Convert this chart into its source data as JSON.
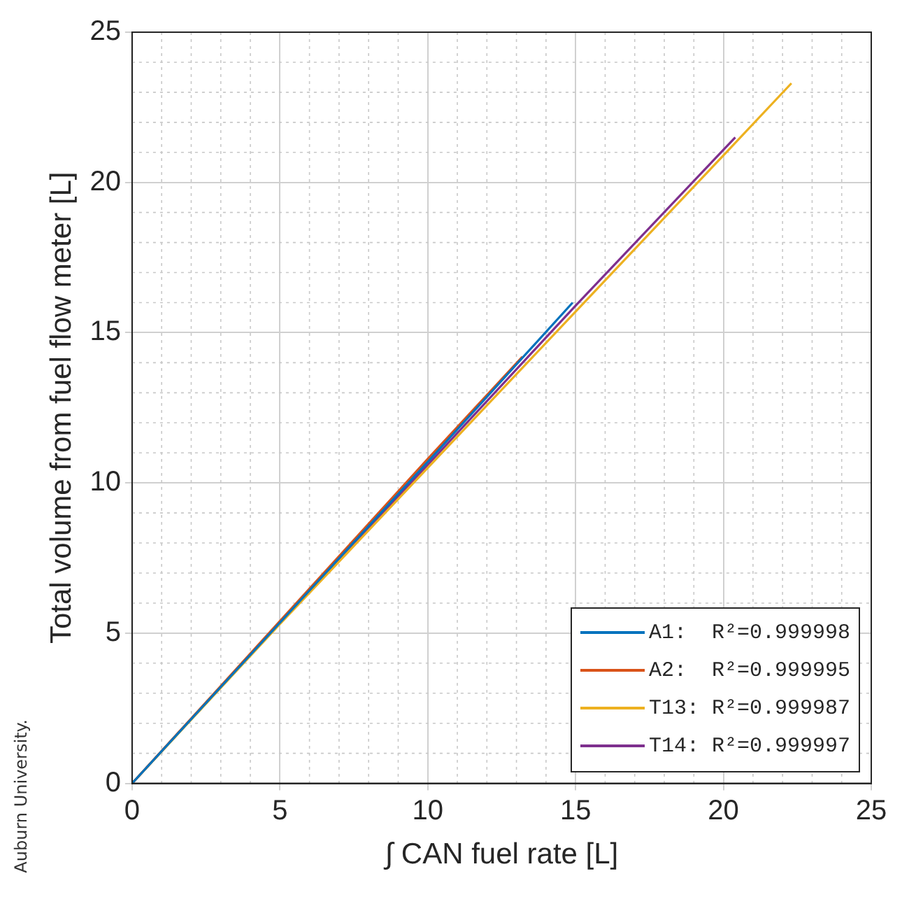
{
  "chart_data": {
    "type": "line",
    "xlabel": "∫ CAN fuel rate [L]",
    "ylabel": "Total volume from fuel flow meter [L]",
    "annotations": [
      "Auburn University."
    ],
    "series": [
      {
        "name": "A1:  R²=0.999998",
        "color": "#0072bd",
        "x": [
          0,
          5,
          10,
          14.9
        ],
        "values": [
          0,
          5.35,
          10.7,
          16.0
        ]
      },
      {
        "name": "A2:  R²=0.999995",
        "color": "#d95319",
        "x": [
          0,
          5,
          10,
          13.2
        ],
        "values": [
          0,
          5.4,
          10.8,
          14.2
        ]
      },
      {
        "name": "T13: R²=0.999987",
        "color": "#edb120",
        "x": [
          0,
          5,
          10,
          15,
          20,
          22.3
        ],
        "values": [
          0,
          5.3,
          10.5,
          15.7,
          20.9,
          23.3
        ]
      },
      {
        "name": "T14: R²=0.999997",
        "color": "#7e2f8e",
        "x": [
          0,
          5,
          10,
          15,
          20.4
        ],
        "values": [
          0,
          5.35,
          10.6,
          15.9,
          21.5
        ]
      }
    ],
    "xlim": [
      0,
      25
    ],
    "xticks": [
      0,
      5,
      10,
      15,
      20,
      25
    ],
    "ylim": [
      0,
      25
    ],
    "yticks": [
      0,
      5,
      10,
      15,
      20,
      25
    ],
    "grid": true,
    "legend": "bottom right",
    "marker": "none",
    "line_style": "solid"
  }
}
